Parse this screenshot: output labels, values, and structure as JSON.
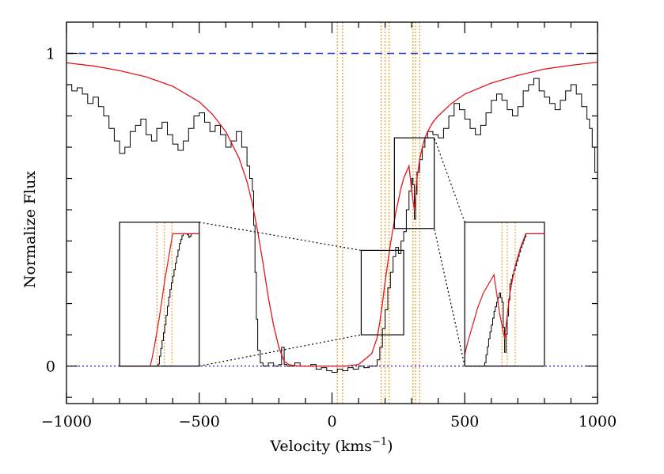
{
  "chart_data": {
    "type": "line",
    "title": "",
    "xlabel": "Velocity (kms",
    "xlabel_sup": "−1",
    "xlabel_close": ")",
    "ylabel": "Normalize Flux",
    "xlim": [
      -1000,
      1000
    ],
    "ylim": [
      -0.12,
      1.1
    ],
    "x_ticks": [
      -1000,
      -500,
      0,
      500,
      1000
    ],
    "x_tick_labels": [
      "−1000",
      "−500",
      "0",
      "500",
      "1000"
    ],
    "y_ticks": [
      0,
      1
    ],
    "y_tick_labels": [
      "0",
      "1"
    ],
    "grid": false,
    "reference_lines": [
      {
        "y": 1,
        "style": "dashed",
        "color": "#1a3fd6"
      },
      {
        "y": 0,
        "style": "dotted",
        "color": "#5b2fb8"
      }
    ],
    "component_lines": {
      "color": "#f0a030",
      "x": [
        20,
        40,
        185,
        200,
        215,
        305,
        315,
        330
      ]
    },
    "series": [
      {
        "role": "model",
        "color": "#e0141e",
        "x": [
          -1000,
          -900,
          -800,
          -700,
          -600,
          -500,
          -450,
          -400,
          -350,
          -320,
          -300,
          -280,
          -260,
          -240,
          -220,
          -200,
          -180,
          -160,
          -140,
          -120,
          -100,
          -50,
          0,
          50,
          100,
          150,
          170,
          180,
          190,
          200,
          210,
          220,
          230,
          240,
          250,
          260,
          270,
          280,
          290,
          300,
          310,
          320,
          330,
          340,
          350,
          360,
          380,
          400,
          450,
          500,
          600,
          700,
          800,
          900,
          1000
        ],
        "y": [
          0.97,
          0.96,
          0.945,
          0.925,
          0.895,
          0.845,
          0.805,
          0.75,
          0.665,
          0.59,
          0.52,
          0.43,
          0.33,
          0.22,
          0.13,
          0.06,
          0.015,
          0.004,
          0.001,
          0.0,
          0.0,
          0.0,
          0.0,
          0.0,
          0.005,
          0.04,
          0.09,
          0.14,
          0.2,
          0.27,
          0.33,
          0.39,
          0.44,
          0.49,
          0.53,
          0.57,
          0.6,
          0.62,
          0.64,
          0.56,
          0.5,
          0.6,
          0.66,
          0.7,
          0.73,
          0.75,
          0.78,
          0.8,
          0.84,
          0.87,
          0.905,
          0.93,
          0.95,
          0.962,
          0.972
        ]
      },
      {
        "role": "data",
        "color": "#000000",
        "x": [
          -1000,
          -980,
          -960,
          -940,
          -920,
          -900,
          -880,
          -860,
          -840,
          -820,
          -800,
          -780,
          -760,
          -740,
          -720,
          -700,
          -680,
          -660,
          -640,
          -620,
          -600,
          -580,
          -560,
          -540,
          -520,
          -500,
          -480,
          -460,
          -440,
          -420,
          -400,
          -380,
          -360,
          -340,
          -320,
          -310,
          -300,
          -295,
          -290,
          -285,
          -280,
          -270,
          -260,
          -240,
          -220,
          -200,
          -190,
          -180,
          -170,
          -160,
          -140,
          -120,
          -100,
          -80,
          -60,
          -40,
          -20,
          0,
          20,
          40,
          60,
          80,
          100,
          120,
          140,
          160,
          170,
          180,
          190,
          200,
          210,
          220,
          230,
          240,
          250,
          260,
          270,
          280,
          290,
          300,
          305,
          310,
          315,
          320,
          330,
          340,
          350,
          360,
          380,
          400,
          420,
          440,
          460,
          480,
          500,
          520,
          540,
          560,
          580,
          600,
          620,
          640,
          660,
          680,
          700,
          720,
          740,
          760,
          780,
          800,
          820,
          840,
          860,
          880,
          900,
          920,
          940,
          960,
          970,
          980,
          990,
          1000
        ],
        "y": [
          0.9,
          0.88,
          0.89,
          0.87,
          0.84,
          0.86,
          0.83,
          0.8,
          0.76,
          0.72,
          0.68,
          0.7,
          0.75,
          0.77,
          0.79,
          0.74,
          0.72,
          0.76,
          0.78,
          0.74,
          0.71,
          0.69,
          0.72,
          0.76,
          0.8,
          0.81,
          0.78,
          0.75,
          0.77,
          0.74,
          0.7,
          0.72,
          0.75,
          0.7,
          0.64,
          0.6,
          0.56,
          0.45,
          0.3,
          0.15,
          0.05,
          0.01,
          0.0,
          0.01,
          0.0,
          0.005,
          0.06,
          0.005,
          0.0,
          0.0,
          0.01,
          0.0,
          0.0,
          0.005,
          -0.01,
          -0.005,
          -0.015,
          -0.02,
          -0.01,
          -0.015,
          -0.005,
          -0.01,
          0.0,
          -0.005,
          0.0,
          0.0,
          0.02,
          0.06,
          0.12,
          0.18,
          0.25,
          0.3,
          0.35,
          0.38,
          0.36,
          0.4,
          0.43,
          0.5,
          0.56,
          0.6,
          0.58,
          0.47,
          0.55,
          0.62,
          0.66,
          0.7,
          0.73,
          0.75,
          0.74,
          0.73,
          0.76,
          0.8,
          0.84,
          0.82,
          0.79,
          0.76,
          0.74,
          0.77,
          0.81,
          0.85,
          0.87,
          0.85,
          0.82,
          0.8,
          0.83,
          0.88,
          0.9,
          0.92,
          0.88,
          0.86,
          0.84,
          0.82,
          0.85,
          0.88,
          0.9,
          0.87,
          0.83,
          0.79,
          0.76,
          0.7,
          0.62,
          0.8
        ]
      }
    ],
    "zoom_boxes": [
      {
        "x": [
          110,
          270
        ],
        "y": [
          0.1,
          0.37
        ]
      },
      {
        "x": [
          235,
          385
        ],
        "y": [
          0.44,
          0.73
        ]
      }
    ],
    "insets": [
      {
        "x": [
          -800,
          -500
        ],
        "y": [
          0.0,
          0.46
        ],
        "source_box": 0
      },
      {
        "x": [
          500,
          800
        ],
        "y": [
          0.0,
          0.46
        ],
        "source_box": 1
      }
    ]
  }
}
